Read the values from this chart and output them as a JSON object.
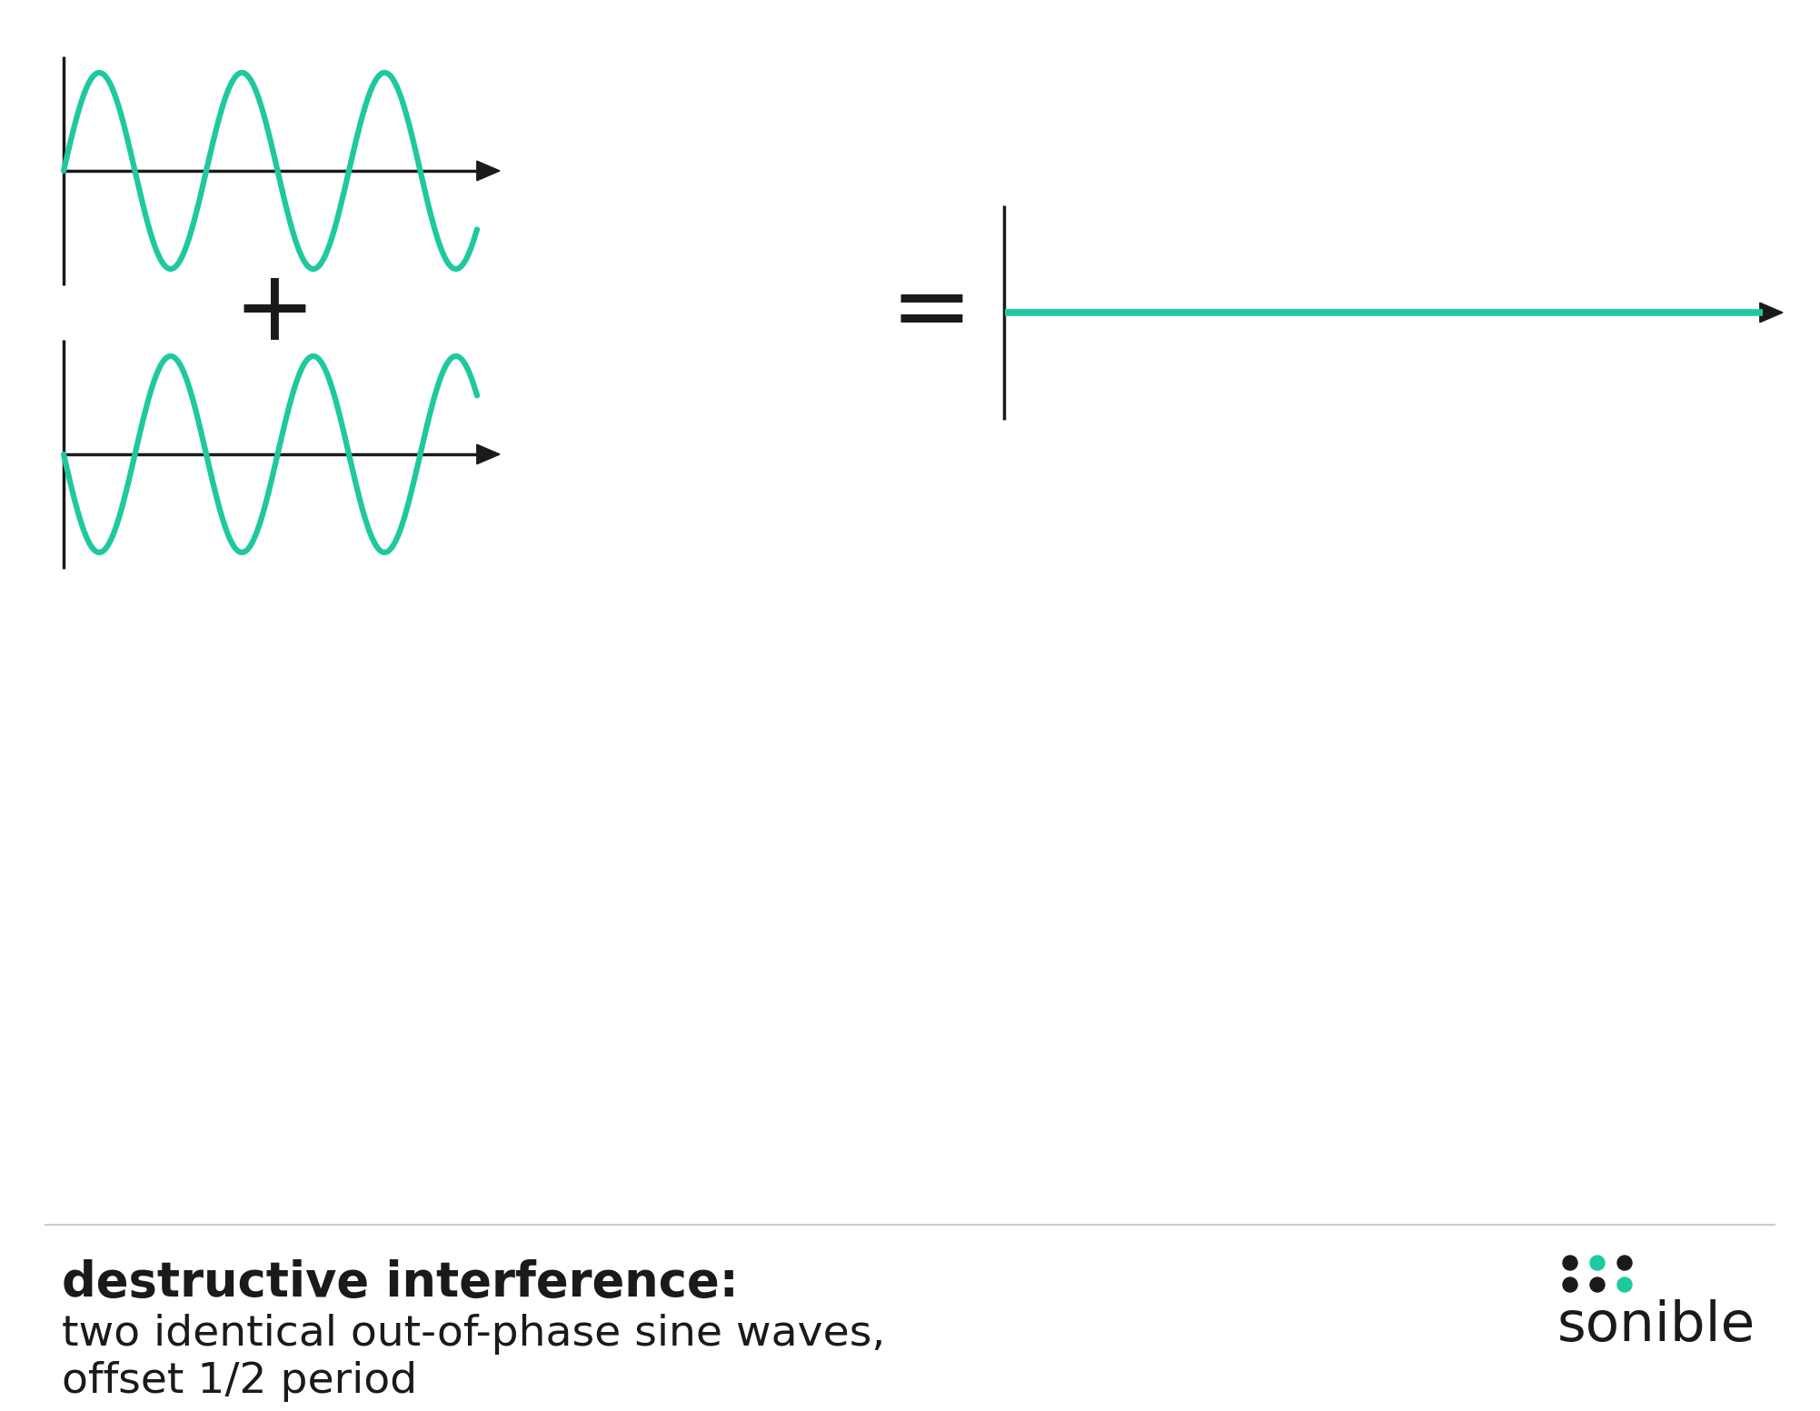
{
  "bg_color": "#ffffff",
  "wave_color": "#1fc9a0",
  "axis_color": "#1a1a1a",
  "text_color": "#1a1a1a",
  "wave_linewidth": 4.5,
  "axis_linewidth": 2.5,
  "title_bold": "destructive interference:",
  "subtitle1": "two identical out-of-phase sine waves,",
  "subtitle2": "offset 1/2 period",
  "plus_symbol": "+",
  "equals_symbol": "=",
  "sonible_text": "sonible",
  "sonible_color": "#1a1a1a",
  "teal_color": "#1fc9a0",
  "sep_line_color": "#cccccc"
}
